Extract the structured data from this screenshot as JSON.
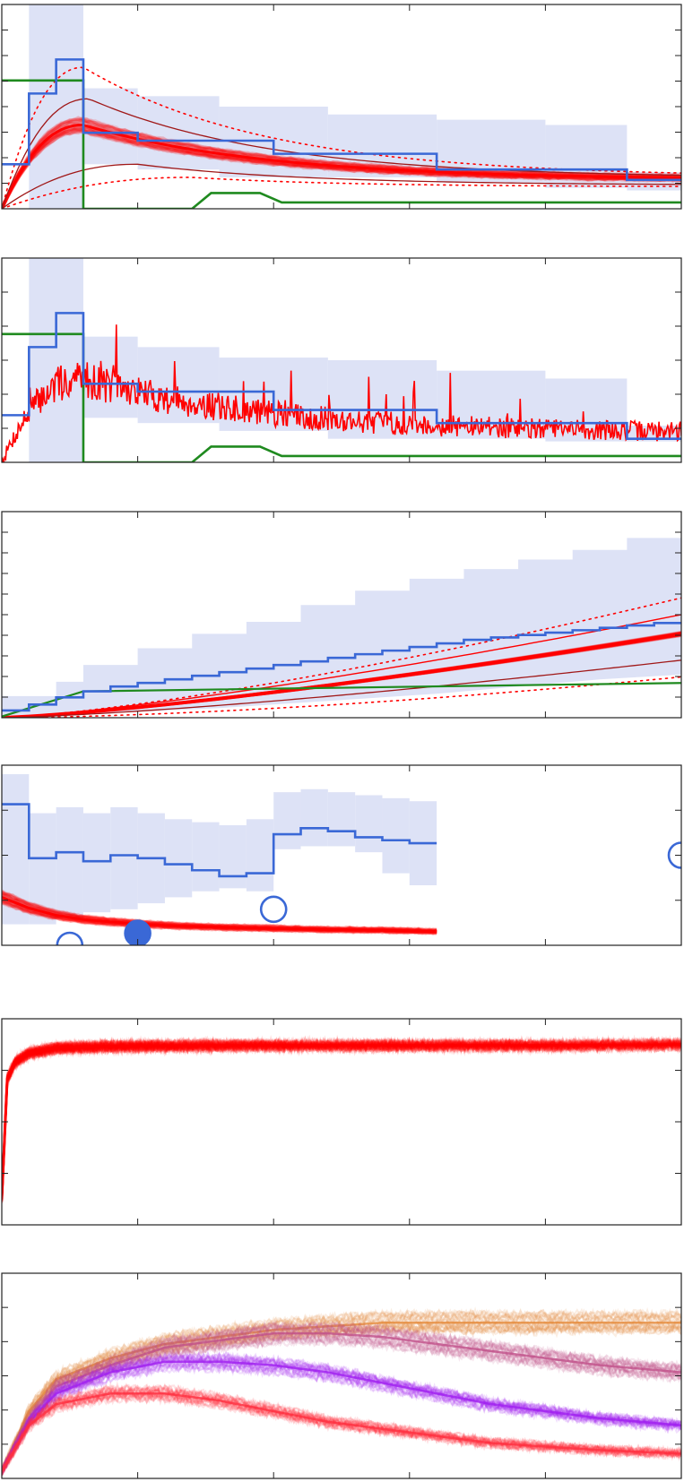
{
  "colors": {
    "band": "#dde2f6",
    "blue": "#3a68d6",
    "red": "#ff0000",
    "darkred": "#a01818",
    "green": "#1f8a1f",
    "orange": "#e58a3a",
    "mauve": "#c0508a",
    "purple": "#a020f0",
    "pink": "#ff3040"
  },
  "chart_data": [
    {
      "type": "line",
      "panel": 1,
      "xlim": [
        0,
        25
      ],
      "ylim": [
        0,
        3.9
      ],
      "grid": false,
      "band": [
        {
          "x0": 1,
          "x1": 3,
          "lo": 0.0,
          "hi": 3.9
        },
        {
          "x0": 3,
          "x1": 5,
          "lo": 0.85,
          "hi": 2.3
        },
        {
          "x0": 5,
          "x1": 8,
          "lo": 0.75,
          "hi": 2.15
        },
        {
          "x0": 8,
          "x1": 12,
          "lo": 0.6,
          "hi": 1.95
        },
        {
          "x0": 12,
          "x1": 16,
          "lo": 0.6,
          "hi": 1.8
        },
        {
          "x0": 16,
          "x1": 20,
          "lo": 0.5,
          "hi": 1.7
        },
        {
          "x0": 20,
          "x1": 23,
          "lo": 0.4,
          "hi": 1.6
        },
        {
          "x0": 23,
          "x1": 25,
          "lo": 0.35,
          "hi": 0.7
        }
      ],
      "observed_step": {
        "x": [
          0,
          1,
          1,
          2,
          2,
          3,
          3,
          5,
          5,
          10,
          10,
          16,
          16,
          23,
          23,
          25
        ],
        "y": [
          0.85,
          0.85,
          2.2,
          2.2,
          2.85,
          2.85,
          1.45,
          1.45,
          1.3,
          1.3,
          1.05,
          1.05,
          0.75,
          0.75,
          0.55,
          0.55
        ]
      },
      "input_step": {
        "x": [
          0,
          3,
          3,
          7,
          7.7,
          9.5,
          10.3,
          25
        ],
        "y": [
          2.45,
          2.45,
          0,
          0,
          0.3,
          0.3,
          0.12,
          0.12
        ]
      },
      "median": {
        "peak_x": 3,
        "peak_y": 1.6,
        "end_y": 0.55
      },
      "inner_upper": {
        "peak_x": 3.2,
        "peak_y": 2.1,
        "end_y": 0.58
      },
      "inner_lower": {
        "peak_x": 5,
        "peak_y": 0.85,
        "end_y": 0.45
      },
      "outer_upper": {
        "peak_x": 3,
        "peak_y": 2.7,
        "end_y": 0.6
      },
      "outer_lower": {
        "peak_x": 7,
        "peak_y": 0.6,
        "end_y": 0.42
      }
    },
    {
      "type": "line",
      "panel": 2,
      "xlim": [
        0,
        25
      ],
      "ylim": [
        0,
        3.9
      ],
      "grid": false,
      "band": [
        {
          "x0": 1,
          "x1": 3,
          "lo": 0.0,
          "hi": 3.9
        },
        {
          "x0": 3,
          "x1": 5,
          "lo": 0.85,
          "hi": 2.4
        },
        {
          "x0": 5,
          "x1": 8,
          "lo": 0.75,
          "hi": 2.2
        },
        {
          "x0": 8,
          "x1": 12,
          "lo": 0.6,
          "hi": 2.0
        },
        {
          "x0": 12,
          "x1": 16,
          "lo": 0.45,
          "hi": 1.95
        },
        {
          "x0": 16,
          "x1": 20,
          "lo": 0.45,
          "hi": 1.75
        },
        {
          "x0": 20,
          "x1": 23,
          "lo": 0.4,
          "hi": 1.6
        },
        {
          "x0": 23,
          "x1": 25,
          "lo": 0.4,
          "hi": 0.7
        }
      ],
      "observed_step": {
        "x": [
          0,
          1,
          1,
          2,
          2,
          3,
          3,
          5,
          5,
          10,
          10,
          16,
          16,
          23,
          23,
          25
        ],
        "y": [
          0.9,
          0.9,
          2.2,
          2.2,
          2.85,
          2.85,
          1.5,
          1.5,
          1.35,
          1.35,
          1.0,
          1.0,
          0.75,
          0.75,
          0.45,
          0.45
        ]
      },
      "input_step": {
        "x": [
          0,
          3,
          3,
          7,
          7.7,
          9.5,
          10.3,
          25
        ],
        "y": [
          2.45,
          2.45,
          0,
          0,
          0.3,
          0.3,
          0.12,
          0.12
        ]
      },
      "noisy_median": {
        "peak_x": 3,
        "peak_y": 1.6,
        "end_y": 0.55
      }
    },
    {
      "type": "line",
      "panel": 3,
      "xlim": [
        0,
        25
      ],
      "ylim": [
        0,
        8.6
      ],
      "grid": false,
      "band_lower": {
        "x": [
          0,
          2,
          4,
          6,
          8,
          10,
          12,
          14,
          16,
          18,
          20,
          22,
          25
        ],
        "y": [
          0,
          0.1,
          0.2,
          0.3,
          0.4,
          0.55,
          0.7,
          0.85,
          1.0,
          1.2,
          1.4,
          1.6,
          1.8
        ]
      },
      "band_upper": {
        "x": [
          0,
          2,
          3,
          5,
          7,
          9,
          11,
          13,
          15,
          17,
          19,
          21,
          23,
          25
        ],
        "y": [
          0.9,
          1.5,
          2.2,
          2.9,
          3.5,
          4.0,
          4.7,
          5.3,
          5.8,
          6.2,
          6.6,
          7.0,
          7.5,
          7.9
        ]
      },
      "observed_step": {
        "x": [
          0,
          1,
          2,
          3,
          4,
          5,
          6,
          7,
          8,
          9,
          10,
          11,
          12,
          13,
          14,
          15,
          16,
          17,
          18,
          19,
          20,
          21,
          22,
          23,
          24,
          25
        ],
        "y": [
          0.3,
          0.55,
          0.85,
          1.1,
          1.3,
          1.45,
          1.6,
          1.75,
          1.9,
          2.05,
          2.2,
          2.35,
          2.5,
          2.65,
          2.8,
          2.95,
          3.1,
          3.25,
          3.35,
          3.45,
          3.55,
          3.65,
          3.75,
          3.85,
          3.95,
          4.0
        ]
      },
      "median_end_y": 3.5,
      "inner_upper_end_y": 4.3,
      "inner_lower_end_y": 2.4,
      "outer_upper_end_y": 5.0,
      "outer_lower_end_y": 1.7,
      "input_line": {
        "x": [
          0,
          3,
          25
        ],
        "y": [
          0.05,
          1.1,
          1.45
        ]
      }
    },
    {
      "type": "line",
      "panel": 4,
      "xlim": [
        0,
        25
      ],
      "ylim": [
        0,
        3.0
      ],
      "grid": false,
      "band": [
        {
          "x0": 0,
          "x1": 1,
          "lo": 0.35,
          "hi": 2.85
        },
        {
          "x0": 1,
          "x1": 2,
          "lo": 0.35,
          "hi": 2.2
        },
        {
          "x0": 2,
          "x1": 3,
          "lo": 0.45,
          "hi": 2.3
        },
        {
          "x0": 3,
          "x1": 4,
          "lo": 0.55,
          "hi": 2.2
        },
        {
          "x0": 4,
          "x1": 5,
          "lo": 0.6,
          "hi": 2.3
        },
        {
          "x0": 5,
          "x1": 6,
          "lo": 0.7,
          "hi": 2.2
        },
        {
          "x0": 6,
          "x1": 7,
          "lo": 0.8,
          "hi": 2.1
        },
        {
          "x0": 7,
          "x1": 8,
          "lo": 0.9,
          "hi": 2.05
        },
        {
          "x0": 8,
          "x1": 9,
          "lo": 0.95,
          "hi": 2.0
        },
        {
          "x0": 9,
          "x1": 10,
          "lo": 0.9,
          "hi": 2.1
        },
        {
          "x0": 10,
          "x1": 11,
          "lo": 1.6,
          "hi": 2.55
        },
        {
          "x0": 11,
          "x1": 12,
          "lo": 1.65,
          "hi": 2.6
        },
        {
          "x0": 12,
          "x1": 13,
          "lo": 1.65,
          "hi": 2.55
        },
        {
          "x0": 13,
          "x1": 14,
          "lo": 1.55,
          "hi": 2.5
        },
        {
          "x0": 14,
          "x1": 15,
          "lo": 1.2,
          "hi": 2.45
        },
        {
          "x0": 15,
          "x1": 16,
          "lo": 1.0,
          "hi": 2.4
        }
      ],
      "observed_step": {
        "x": [
          0,
          1,
          1,
          2,
          2,
          3,
          3,
          4,
          4,
          5,
          5,
          6,
          6,
          7,
          7,
          8,
          8,
          9,
          9,
          10,
          10,
          11,
          11,
          12,
          12,
          13,
          13,
          14,
          14,
          15,
          15,
          16
        ],
        "y": [
          2.35,
          2.35,
          1.45,
          1.45,
          1.55,
          1.55,
          1.4,
          1.4,
          1.5,
          1.5,
          1.45,
          1.45,
          1.35,
          1.35,
          1.25,
          1.25,
          1.15,
          1.15,
          1.2,
          1.2,
          1.85,
          1.85,
          1.95,
          1.95,
          1.9,
          1.9,
          1.8,
          1.8,
          1.75,
          1.75,
          1.7,
          1.7
        ]
      },
      "median": {
        "x": [
          0,
          1,
          2,
          3,
          4,
          5,
          6,
          8,
          10,
          12,
          14,
          16
        ],
        "y": [
          0.8,
          0.62,
          0.5,
          0.43,
          0.39,
          0.36,
          0.33,
          0.3,
          0.28,
          0.26,
          0.25,
          0.23
        ]
      },
      "points": [
        {
          "x": 2.5,
          "y": 0.0,
          "filled": false
        },
        {
          "x": 5,
          "y": 0.2,
          "filled": true
        },
        {
          "x": 10,
          "y": 0.6,
          "filled": false
        },
        {
          "x": 25,
          "y": 1.5,
          "filled": false
        }
      ]
    },
    {
      "type": "line",
      "panel": 5,
      "xlim": [
        0,
        25
      ],
      "ylim": [
        0,
        1.2
      ],
      "grid": false,
      "median": {
        "x": [
          0,
          0.2,
          0.5,
          1,
          2,
          4,
          8,
          12,
          16,
          20,
          25
        ],
        "y": [
          0.15,
          0.85,
          0.95,
          1.0,
          1.03,
          1.04,
          1.045,
          1.045,
          1.045,
          1.045,
          1.05
        ]
      }
    },
    {
      "type": "line",
      "panel": 6,
      "xlim": [
        0,
        25
      ],
      "ylim": [
        0,
        2.9
      ],
      "grid": false,
      "series": [
        {
          "color_key": "orange",
          "x": [
            0,
            1,
            2,
            4,
            6,
            8,
            10,
            12,
            14,
            16,
            18,
            20,
            22,
            25
          ],
          "y": [
            0.1,
            0.95,
            1.4,
            1.7,
            1.9,
            2.0,
            2.1,
            2.15,
            2.2,
            2.2,
            2.2,
            2.2,
            2.2,
            2.2
          ]
        },
        {
          "color_key": "mauve",
          "x": [
            0,
            1,
            2,
            4,
            6,
            8,
            10,
            12,
            14,
            16,
            18,
            20,
            22,
            25
          ],
          "y": [
            0.1,
            0.85,
            1.3,
            1.6,
            1.85,
            1.95,
            2.05,
            2.05,
            2.0,
            1.9,
            1.8,
            1.7,
            1.6,
            1.5
          ]
        },
        {
          "color_key": "purple",
          "x": [
            0,
            1,
            2,
            4,
            6,
            8,
            10,
            12,
            14,
            16,
            18,
            20,
            22,
            25
          ],
          "y": [
            0.1,
            0.8,
            1.2,
            1.5,
            1.65,
            1.65,
            1.6,
            1.5,
            1.35,
            1.2,
            1.05,
            0.95,
            0.85,
            0.75
          ]
        },
        {
          "color_key": "pink",
          "x": [
            0,
            1,
            2,
            4,
            6,
            8,
            10,
            12,
            14,
            16,
            18,
            20,
            22,
            25
          ],
          "y": [
            0.1,
            0.75,
            1.05,
            1.2,
            1.2,
            1.1,
            0.95,
            0.8,
            0.7,
            0.6,
            0.5,
            0.45,
            0.4,
            0.35
          ]
        }
      ]
    }
  ]
}
